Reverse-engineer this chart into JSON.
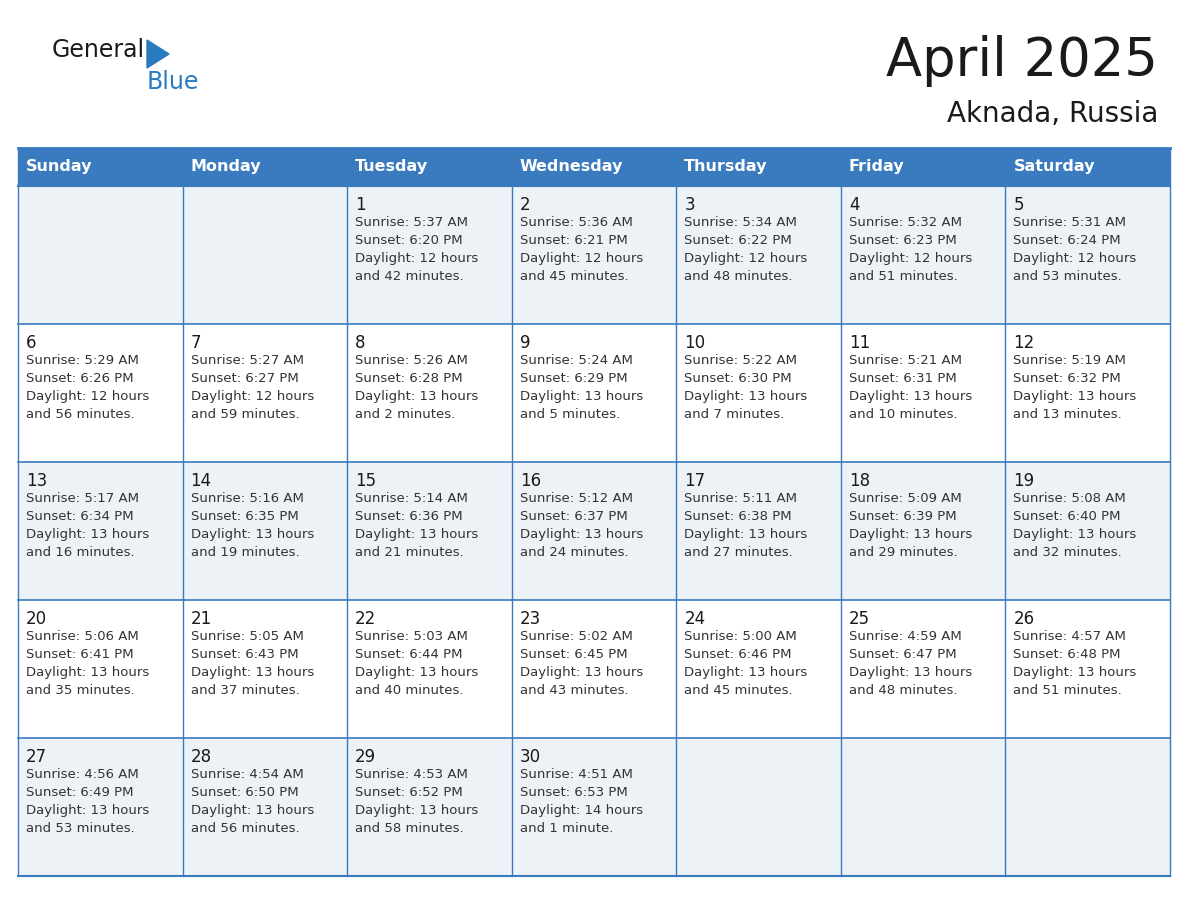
{
  "title": "April 2025",
  "subtitle": "Aknada, Russia",
  "header_bg": "#3a7abf",
  "header_text_color": "#ffffff",
  "cell_bg_odd": "#edf2f7",
  "cell_bg_even": "#ffffff",
  "grid_line_color": "#3a7abf",
  "day_names": [
    "Sunday",
    "Monday",
    "Tuesday",
    "Wednesday",
    "Thursday",
    "Friday",
    "Saturday"
  ],
  "title_fontsize": 38,
  "subtitle_fontsize": 20,
  "day_number_fontsize": 12,
  "cell_text_fontsize": 9.5,
  "header_fontsize": 11.5,
  "calendar_data": [
    [
      {
        "day": "",
        "sunrise": "",
        "sunset": "",
        "daylight": ""
      },
      {
        "day": "",
        "sunrise": "",
        "sunset": "",
        "daylight": ""
      },
      {
        "day": "1",
        "sunrise": "Sunrise: 5:37 AM",
        "sunset": "Sunset: 6:20 PM",
        "daylight": "Daylight: 12 hours\nand 42 minutes."
      },
      {
        "day": "2",
        "sunrise": "Sunrise: 5:36 AM",
        "sunset": "Sunset: 6:21 PM",
        "daylight": "Daylight: 12 hours\nand 45 minutes."
      },
      {
        "day": "3",
        "sunrise": "Sunrise: 5:34 AM",
        "sunset": "Sunset: 6:22 PM",
        "daylight": "Daylight: 12 hours\nand 48 minutes."
      },
      {
        "day": "4",
        "sunrise": "Sunrise: 5:32 AM",
        "sunset": "Sunset: 6:23 PM",
        "daylight": "Daylight: 12 hours\nand 51 minutes."
      },
      {
        "day": "5",
        "sunrise": "Sunrise: 5:31 AM",
        "sunset": "Sunset: 6:24 PM",
        "daylight": "Daylight: 12 hours\nand 53 minutes."
      }
    ],
    [
      {
        "day": "6",
        "sunrise": "Sunrise: 5:29 AM",
        "sunset": "Sunset: 6:26 PM",
        "daylight": "Daylight: 12 hours\nand 56 minutes."
      },
      {
        "day": "7",
        "sunrise": "Sunrise: 5:27 AM",
        "sunset": "Sunset: 6:27 PM",
        "daylight": "Daylight: 12 hours\nand 59 minutes."
      },
      {
        "day": "8",
        "sunrise": "Sunrise: 5:26 AM",
        "sunset": "Sunset: 6:28 PM",
        "daylight": "Daylight: 13 hours\nand 2 minutes."
      },
      {
        "day": "9",
        "sunrise": "Sunrise: 5:24 AM",
        "sunset": "Sunset: 6:29 PM",
        "daylight": "Daylight: 13 hours\nand 5 minutes."
      },
      {
        "day": "10",
        "sunrise": "Sunrise: 5:22 AM",
        "sunset": "Sunset: 6:30 PM",
        "daylight": "Daylight: 13 hours\nand 7 minutes."
      },
      {
        "day": "11",
        "sunrise": "Sunrise: 5:21 AM",
        "sunset": "Sunset: 6:31 PM",
        "daylight": "Daylight: 13 hours\nand 10 minutes."
      },
      {
        "day": "12",
        "sunrise": "Sunrise: 5:19 AM",
        "sunset": "Sunset: 6:32 PM",
        "daylight": "Daylight: 13 hours\nand 13 minutes."
      }
    ],
    [
      {
        "day": "13",
        "sunrise": "Sunrise: 5:17 AM",
        "sunset": "Sunset: 6:34 PM",
        "daylight": "Daylight: 13 hours\nand 16 minutes."
      },
      {
        "day": "14",
        "sunrise": "Sunrise: 5:16 AM",
        "sunset": "Sunset: 6:35 PM",
        "daylight": "Daylight: 13 hours\nand 19 minutes."
      },
      {
        "day": "15",
        "sunrise": "Sunrise: 5:14 AM",
        "sunset": "Sunset: 6:36 PM",
        "daylight": "Daylight: 13 hours\nand 21 minutes."
      },
      {
        "day": "16",
        "sunrise": "Sunrise: 5:12 AM",
        "sunset": "Sunset: 6:37 PM",
        "daylight": "Daylight: 13 hours\nand 24 minutes."
      },
      {
        "day": "17",
        "sunrise": "Sunrise: 5:11 AM",
        "sunset": "Sunset: 6:38 PM",
        "daylight": "Daylight: 13 hours\nand 27 minutes."
      },
      {
        "day": "18",
        "sunrise": "Sunrise: 5:09 AM",
        "sunset": "Sunset: 6:39 PM",
        "daylight": "Daylight: 13 hours\nand 29 minutes."
      },
      {
        "day": "19",
        "sunrise": "Sunrise: 5:08 AM",
        "sunset": "Sunset: 6:40 PM",
        "daylight": "Daylight: 13 hours\nand 32 minutes."
      }
    ],
    [
      {
        "day": "20",
        "sunrise": "Sunrise: 5:06 AM",
        "sunset": "Sunset: 6:41 PM",
        "daylight": "Daylight: 13 hours\nand 35 minutes."
      },
      {
        "day": "21",
        "sunrise": "Sunrise: 5:05 AM",
        "sunset": "Sunset: 6:43 PM",
        "daylight": "Daylight: 13 hours\nand 37 minutes."
      },
      {
        "day": "22",
        "sunrise": "Sunrise: 5:03 AM",
        "sunset": "Sunset: 6:44 PM",
        "daylight": "Daylight: 13 hours\nand 40 minutes."
      },
      {
        "day": "23",
        "sunrise": "Sunrise: 5:02 AM",
        "sunset": "Sunset: 6:45 PM",
        "daylight": "Daylight: 13 hours\nand 43 minutes."
      },
      {
        "day": "24",
        "sunrise": "Sunrise: 5:00 AM",
        "sunset": "Sunset: 6:46 PM",
        "daylight": "Daylight: 13 hours\nand 45 minutes."
      },
      {
        "day": "25",
        "sunrise": "Sunrise: 4:59 AM",
        "sunset": "Sunset: 6:47 PM",
        "daylight": "Daylight: 13 hours\nand 48 minutes."
      },
      {
        "day": "26",
        "sunrise": "Sunrise: 4:57 AM",
        "sunset": "Sunset: 6:48 PM",
        "daylight": "Daylight: 13 hours\nand 51 minutes."
      }
    ],
    [
      {
        "day": "27",
        "sunrise": "Sunrise: 4:56 AM",
        "sunset": "Sunset: 6:49 PM",
        "daylight": "Daylight: 13 hours\nand 53 minutes."
      },
      {
        "day": "28",
        "sunrise": "Sunrise: 4:54 AM",
        "sunset": "Sunset: 6:50 PM",
        "daylight": "Daylight: 13 hours\nand 56 minutes."
      },
      {
        "day": "29",
        "sunrise": "Sunrise: 4:53 AM",
        "sunset": "Sunset: 6:52 PM",
        "daylight": "Daylight: 13 hours\nand 58 minutes."
      },
      {
        "day": "30",
        "sunrise": "Sunrise: 4:51 AM",
        "sunset": "Sunset: 6:53 PM",
        "daylight": "Daylight: 14 hours\nand 1 minute."
      },
      {
        "day": "",
        "sunrise": "",
        "sunset": "",
        "daylight": ""
      },
      {
        "day": "",
        "sunrise": "",
        "sunset": "",
        "daylight": ""
      },
      {
        "day": "",
        "sunrise": "",
        "sunset": "",
        "daylight": ""
      }
    ]
  ]
}
